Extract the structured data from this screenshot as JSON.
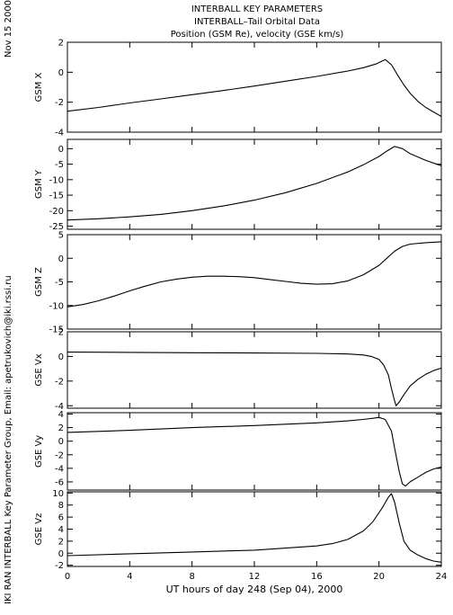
{
  "date_stamp": "Nov 15 2000",
  "side_label": "IKI RAN INTERBALL Key Parameter Group, Email: apetrukovich@iki.rssi.ru",
  "title_lines": [
    "INTERBALL KEY PARAMETERS",
    "INTERBALL–Tail Orbital Data",
    "Position (GSM Re), velocity (GSE km/s)"
  ],
  "chart_data": {
    "type": "line",
    "xlabel": "UT hours of day 248 (Sep 04), 2000",
    "xlim": [
      0,
      24
    ],
    "xticks": [
      0,
      4,
      8,
      12,
      16,
      20,
      24
    ],
    "panels": [
      {
        "ylabel": "GSM X",
        "ylim": [
          -4,
          2
        ],
        "yticks": [
          -4,
          -2,
          0,
          2
        ],
        "x": [
          0,
          2,
          4,
          6,
          8,
          10,
          12,
          14,
          16,
          18,
          19,
          19.8,
          20.4,
          20.8,
          21.2,
          21.6,
          22,
          22.5,
          23,
          23.5,
          24
        ],
        "y": [
          -2.6,
          -2.35,
          -2.05,
          -1.78,
          -1.5,
          -1.22,
          -0.92,
          -0.6,
          -0.28,
          0.08,
          0.3,
          0.55,
          0.85,
          0.5,
          -0.2,
          -0.85,
          -1.4,
          -1.95,
          -2.35,
          -2.65,
          -2.95
        ]
      },
      {
        "ylabel": "GSM Y",
        "ylim": [
          -26,
          3
        ],
        "yticks": [
          -25,
          -20,
          -15,
          -10,
          -5,
          0
        ],
        "x": [
          0,
          2,
          4,
          6,
          8,
          10,
          12,
          14,
          16,
          18,
          19,
          20,
          20.5,
          21,
          21.5,
          22,
          23,
          24
        ],
        "y": [
          -23,
          -22.6,
          -22,
          -21.2,
          -20,
          -18.5,
          -16.6,
          -14.2,
          -11.2,
          -7.5,
          -5.2,
          -2.5,
          -0.8,
          0.7,
          0,
          -1.6,
          -3.8,
          -5.5
        ]
      },
      {
        "ylabel": "GSM Z",
        "ylim": [
          -15,
          5
        ],
        "yticks": [
          -15,
          -10,
          -5,
          0,
          5
        ],
        "x": [
          0,
          1,
          2,
          3,
          4,
          5,
          6,
          7,
          8,
          9,
          10,
          11,
          12,
          13,
          14,
          15,
          16,
          17,
          18,
          19,
          20,
          20.5,
          21,
          21.5,
          22,
          23,
          24
        ],
        "y": [
          -10.3,
          -9.8,
          -9,
          -8,
          -6.9,
          -5.9,
          -5,
          -4.4,
          -4,
          -3.8,
          -3.8,
          -3.9,
          -4.1,
          -4.5,
          -4.9,
          -5.3,
          -5.5,
          -5.4,
          -4.8,
          -3.5,
          -1.5,
          0,
          1.5,
          2.5,
          3,
          3.3,
          3.5
        ]
      },
      {
        "ylabel": "GSE Vx",
        "ylim": [
          -4.2,
          2
        ],
        "yticks": [
          -4,
          -2,
          0,
          2
        ],
        "x": [
          0,
          4,
          8,
          12,
          16,
          18,
          19,
          19.5,
          20,
          20.3,
          20.6,
          20.8,
          21,
          21.1,
          21.3,
          21.6,
          22,
          22.5,
          23,
          23.5,
          24
        ],
        "y": [
          0.35,
          0.33,
          0.3,
          0.28,
          0.25,
          0.2,
          0.12,
          0,
          -0.25,
          -0.7,
          -1.5,
          -2.6,
          -3.6,
          -4.0,
          -3.7,
          -3.1,
          -2.4,
          -1.85,
          -1.45,
          -1.15,
          -0.95
        ]
      },
      {
        "ylabel": "GSE Vy",
        "ylim": [
          -7.2,
          4.2
        ],
        "yticks": [
          -6,
          -4,
          -2,
          0,
          2,
          4
        ],
        "x": [
          0,
          4,
          8,
          12,
          16,
          18,
          19,
          20,
          20.4,
          20.8,
          21,
          21.3,
          21.5,
          21.7,
          22,
          22.5,
          23,
          23.5,
          24
        ],
        "y": [
          1.3,
          1.6,
          2.0,
          2.3,
          2.7,
          3.0,
          3.2,
          3.5,
          3.2,
          1.5,
          -1.0,
          -4.5,
          -6.3,
          -6.6,
          -6.0,
          -5.3,
          -4.6,
          -4.1,
          -3.8
        ]
      },
      {
        "ylabel": "GSE Vz",
        "ylim": [
          -2.2,
          10.2
        ],
        "yticks": [
          -2,
          0,
          2,
          4,
          6,
          8,
          10
        ],
        "x": [
          0,
          4,
          8,
          12,
          16,
          17,
          18,
          19,
          19.6,
          20.2,
          20.6,
          20.8,
          21,
          21.3,
          21.6,
          22,
          22.5,
          23,
          23.5,
          24
        ],
        "y": [
          -0.4,
          -0.1,
          0.2,
          0.5,
          1.2,
          1.6,
          2.3,
          3.7,
          5.2,
          7.5,
          9.3,
          9.9,
          8.5,
          5,
          2,
          0.5,
          -0.3,
          -0.9,
          -1.3,
          -1.5
        ]
      }
    ]
  }
}
